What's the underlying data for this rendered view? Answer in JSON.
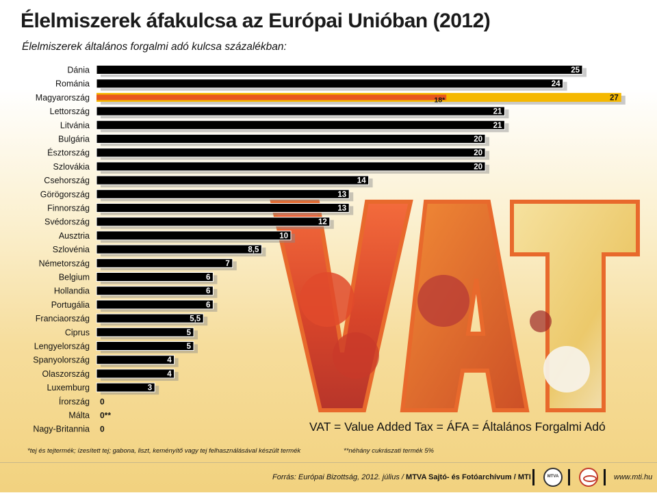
{
  "title": "Élelmiszerek áfakulcsa az Európai Unióban (2012)",
  "subtitle": "Élelmiszerek általános forgalmi adó kulcsa százalékban:",
  "chart_data": {
    "type": "bar",
    "orientation": "horizontal",
    "title": "Élelmiszerek áfakulcsa az Európai Unióban (2012)",
    "subtitle": "Élelmiszerek általános forgalmi adó kulcsa százalékban:",
    "categories": [
      "Dánia",
      "Románia",
      "Magyarország",
      "Lettország",
      "Litvánia",
      "Bulgária",
      "Észtország",
      "Szlovákia",
      "Csehország",
      "Görögország",
      "Finnország",
      "Svédország",
      "Ausztria",
      "Szlovénia",
      "Németország",
      "Belgium",
      "Hollandia",
      "Portugália",
      "Franciaország",
      "Ciprus",
      "Lengyelország",
      "Spanyolország",
      "Olaszország",
      "Luxemburg",
      "Írország",
      "Málta",
      "Nagy-Britannia"
    ],
    "values": [
      25,
      24,
      27,
      21,
      21,
      20,
      20,
      20,
      14,
      13,
      13,
      12,
      10,
      8.5,
      7,
      6,
      6,
      6,
      5.5,
      5,
      5,
      4,
      4,
      3,
      0,
      0,
      0
    ],
    "labels": [
      "25",
      "24",
      "27",
      "21",
      "21",
      "20",
      "20",
      "20",
      "14",
      "13",
      "13",
      "12",
      "10",
      "8,5",
      "7",
      "6",
      "6",
      "6",
      "5,5",
      "5",
      "5",
      "4",
      "4",
      "3",
      "0",
      "0**",
      "0"
    ],
    "secondary": {
      "category": "Magyarország",
      "value": 18,
      "label": "18*"
    },
    "colors": {
      "bar": "#000000",
      "highlight_outer": "#f5b800",
      "highlight_inner": "#e8571f"
    },
    "annotation": "VAT = Value Added Tax = ÁFA = Általános Forgalmi Adó"
  },
  "annotation_text": "VAT = Value Added Tax = ÁFA = Általános Forgalmi Adó",
  "image_text": "VAT",
  "footnotes": {
    "note1": "*tej és tejtermék; ízesített tej; gabona, liszt, keményítő vagy tej felhasználásával készült termék",
    "note2": "**néhány cukrászati termék 5%"
  },
  "footer": {
    "source": "Forrás: Európai Bizottság, 2012. július / ",
    "agency": "MTVA Sajtó- és Fotóarchívum / MTI",
    "mtva_logo": "MTVA",
    "url": "www.mti.hu"
  }
}
